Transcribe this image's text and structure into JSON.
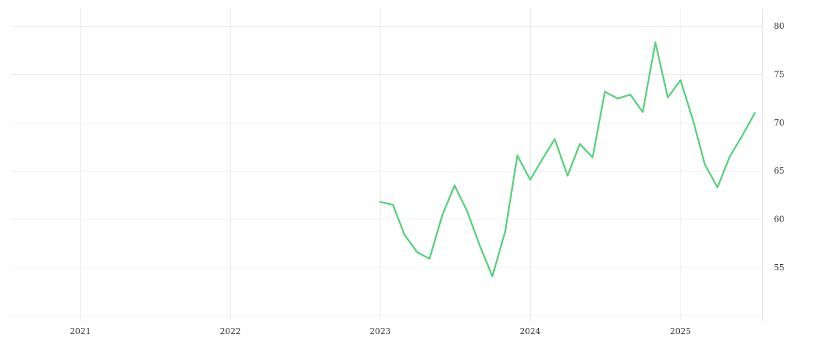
{
  "chart_data": {
    "type": "line",
    "title": "",
    "xlabel": "",
    "ylabel": "",
    "x_range": [
      "2020-07-15",
      "2025-07-15"
    ],
    "y_range": [
      45,
      81
    ],
    "x_ticks": [
      {
        "date": "2021-01-01",
        "label": "2021"
      },
      {
        "date": "2022-01-01",
        "label": "2022"
      },
      {
        "date": "2023-01-01",
        "label": "2023"
      },
      {
        "date": "2024-01-01",
        "label": "2024"
      },
      {
        "date": "2025-01-01",
        "label": "2025"
      }
    ],
    "y_ticks": [
      {
        "value": 55,
        "label": "55"
      },
      {
        "value": 60,
        "label": "60"
      },
      {
        "value": 65,
        "label": "65"
      },
      {
        "value": 70,
        "label": "70"
      },
      {
        "value": 75,
        "label": "75"
      },
      {
        "value": 80,
        "label": "80"
      }
    ],
    "y_axis_side": "right",
    "grid": true,
    "legend": "none",
    "series": [
      {
        "color": "#55d17a",
        "points": [
          {
            "x": "2023-01-01",
            "y": 61.8
          },
          {
            "x": "2023-02-01",
            "y": 61.5
          },
          {
            "x": "2023-03-01",
            "y": 58.4
          },
          {
            "x": "2023-04-01",
            "y": 56.6
          },
          {
            "x": "2023-05-01",
            "y": 55.9
          },
          {
            "x": "2023-06-01",
            "y": 60.4
          },
          {
            "x": "2023-07-01",
            "y": 63.5
          },
          {
            "x": "2023-08-01",
            "y": 60.8
          },
          {
            "x": "2023-09-01",
            "y": 57.2
          },
          {
            "x": "2023-10-01",
            "y": 54.1
          },
          {
            "x": "2023-11-01",
            "y": 58.7
          },
          {
            "x": "2023-12-01",
            "y": 66.6
          },
          {
            "x": "2024-01-01",
            "y": 64.1
          },
          {
            "x": "2024-02-01",
            "y": 66.3
          },
          {
            "x": "2024-03-01",
            "y": 68.3
          },
          {
            "x": "2024-04-01",
            "y": 64.5
          },
          {
            "x": "2024-05-01",
            "y": 67.8
          },
          {
            "x": "2024-06-01",
            "y": 66.4
          },
          {
            "x": "2024-07-01",
            "y": 73.2
          },
          {
            "x": "2024-08-01",
            "y": 72.5
          },
          {
            "x": "2024-09-01",
            "y": 72.9
          },
          {
            "x": "2024-10-01",
            "y": 71.1
          },
          {
            "x": "2024-11-01",
            "y": 78.3
          },
          {
            "x": "2024-12-01",
            "y": 72.6
          },
          {
            "x": "2025-01-01",
            "y": 74.4
          },
          {
            "x": "2025-02-01",
            "y": 70.2
          },
          {
            "x": "2025-03-01",
            "y": 65.7
          },
          {
            "x": "2025-04-01",
            "y": 63.3
          },
          {
            "x": "2025-05-01",
            "y": 66.5
          },
          {
            "x": "2025-06-01",
            "y": 68.7
          },
          {
            "x": "2025-07-01",
            "y": 71.0
          }
        ]
      }
    ]
  }
}
